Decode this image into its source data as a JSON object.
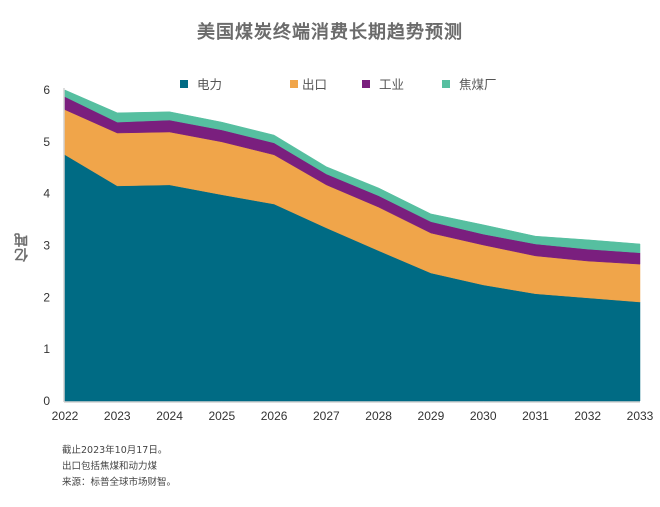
{
  "title": "美国煤炭终端消费长期趋势预测",
  "notes": [
    "截止2023年10月17日。",
    "出口包括焦煤和动力煤",
    "来源：标普全球市场财智。"
  ],
  "chart_data": {
    "type": "area",
    "stacked": true,
    "title": "美国煤炭终端消费长期趋势预测",
    "xlabel": "",
    "ylabel": "亿吨",
    "x": [
      "2022",
      "2023",
      "2024",
      "2025",
      "2026",
      "2027",
      "2028",
      "2029",
      "2030",
      "2031",
      "2032",
      "2033"
    ],
    "ylim": [
      0,
      6
    ],
    "yticks": [
      0,
      1,
      2,
      3,
      4,
      5,
      6
    ],
    "grid": false,
    "legend_position": "top-center",
    "series": [
      {
        "name": "电力",
        "color": "#006B84",
        "values": [
          4.75,
          4.15,
          4.17,
          3.98,
          3.8,
          3.34,
          2.9,
          2.47,
          2.24,
          2.07,
          1.99,
          1.91
        ]
      },
      {
        "name": "出口",
        "color": "#F0A54A",
        "values": [
          0.87,
          1.02,
          1.02,
          1.02,
          0.95,
          0.83,
          0.84,
          0.77,
          0.77,
          0.73,
          0.71,
          0.73
        ]
      },
      {
        "name": "工业",
        "color": "#7A1F7E",
        "values": [
          0.25,
          0.21,
          0.23,
          0.23,
          0.23,
          0.21,
          0.22,
          0.22,
          0.21,
          0.23,
          0.23,
          0.22
        ]
      },
      {
        "name": "焦煤厂",
        "color": "#56BFA0",
        "values": [
          0.13,
          0.18,
          0.16,
          0.15,
          0.15,
          0.14,
          0.15,
          0.15,
          0.18,
          0.15,
          0.18,
          0.17
        ]
      }
    ]
  }
}
